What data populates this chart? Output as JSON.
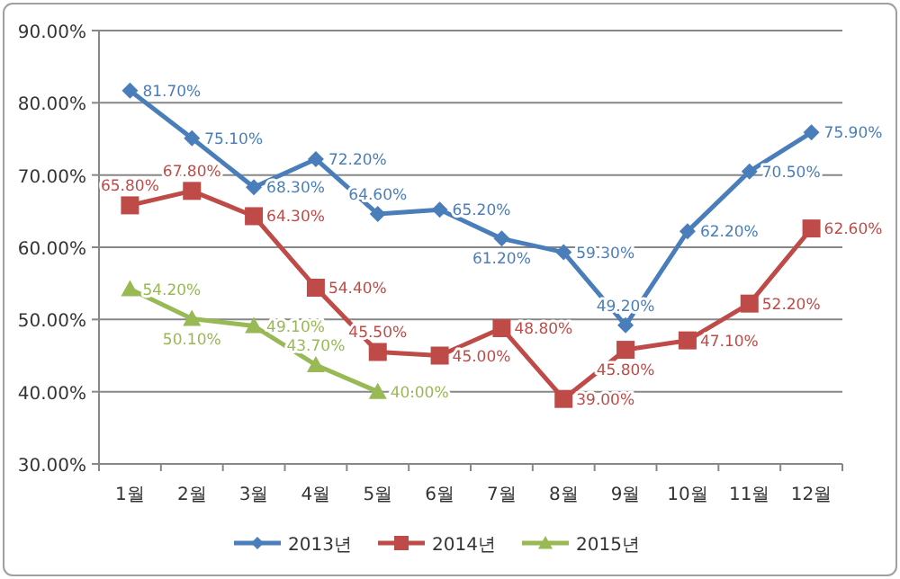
{
  "chart_data": {
    "type": "line",
    "categories": [
      "1월",
      "2월",
      "3월",
      "4월",
      "5월",
      "6월",
      "7월",
      "8월",
      "9월",
      "10월",
      "11월",
      "12월"
    ],
    "ylim": [
      30,
      90
    ],
    "yticks": [
      {
        "value": 30,
        "label": "30.00%"
      },
      {
        "value": 40,
        "label": "40.00%"
      },
      {
        "value": 50,
        "label": "50.00%"
      },
      {
        "value": 60,
        "label": "60.00%"
      },
      {
        "value": 70,
        "label": "70.00%"
      },
      {
        "value": 80,
        "label": "80.00%"
      },
      {
        "value": 90,
        "label": "90.00%"
      }
    ],
    "grid": "y",
    "legend": "bottom",
    "series": [
      {
        "name": "2013년",
        "color": "#4a7ebb",
        "marker": "diamond",
        "values": [
          81.7,
          75.1,
          68.3,
          72.2,
          64.6,
          65.2,
          61.2,
          59.3,
          49.2,
          62.2,
          70.5,
          75.9
        ],
        "value_labels": [
          "81.70%",
          "75.10%",
          "68.30%",
          "72.20%",
          "64.60%",
          "65.20%",
          "61.20%",
          "59.30%",
          "49.20%",
          "62.20%",
          "70.50%",
          "75.90%"
        ]
      },
      {
        "name": "2014년",
        "color": "#be4b48",
        "marker": "square",
        "values": [
          65.8,
          67.8,
          64.3,
          54.4,
          45.5,
          45.0,
          48.8,
          39.0,
          45.8,
          47.1,
          52.2,
          62.6
        ],
        "value_labels": [
          "65.80%",
          "67.80%",
          "64.30%",
          "54.40%",
          "45.50%",
          "45.00%",
          "48.80%",
          "39.00%",
          "45.80%",
          "47.10%",
          "52.20%",
          "62.60%"
        ]
      },
      {
        "name": "2015년",
        "color": "#98b954",
        "marker": "triangle",
        "values": [
          54.2,
          50.1,
          49.1,
          43.7,
          40.0,
          null,
          null,
          null,
          null,
          null,
          null,
          null
        ],
        "value_labels": [
          "54.20%",
          "50.10%",
          "49.10%",
          "43.70%",
          "40.00%",
          null,
          null,
          null,
          null,
          null,
          null,
          null
        ]
      }
    ]
  }
}
